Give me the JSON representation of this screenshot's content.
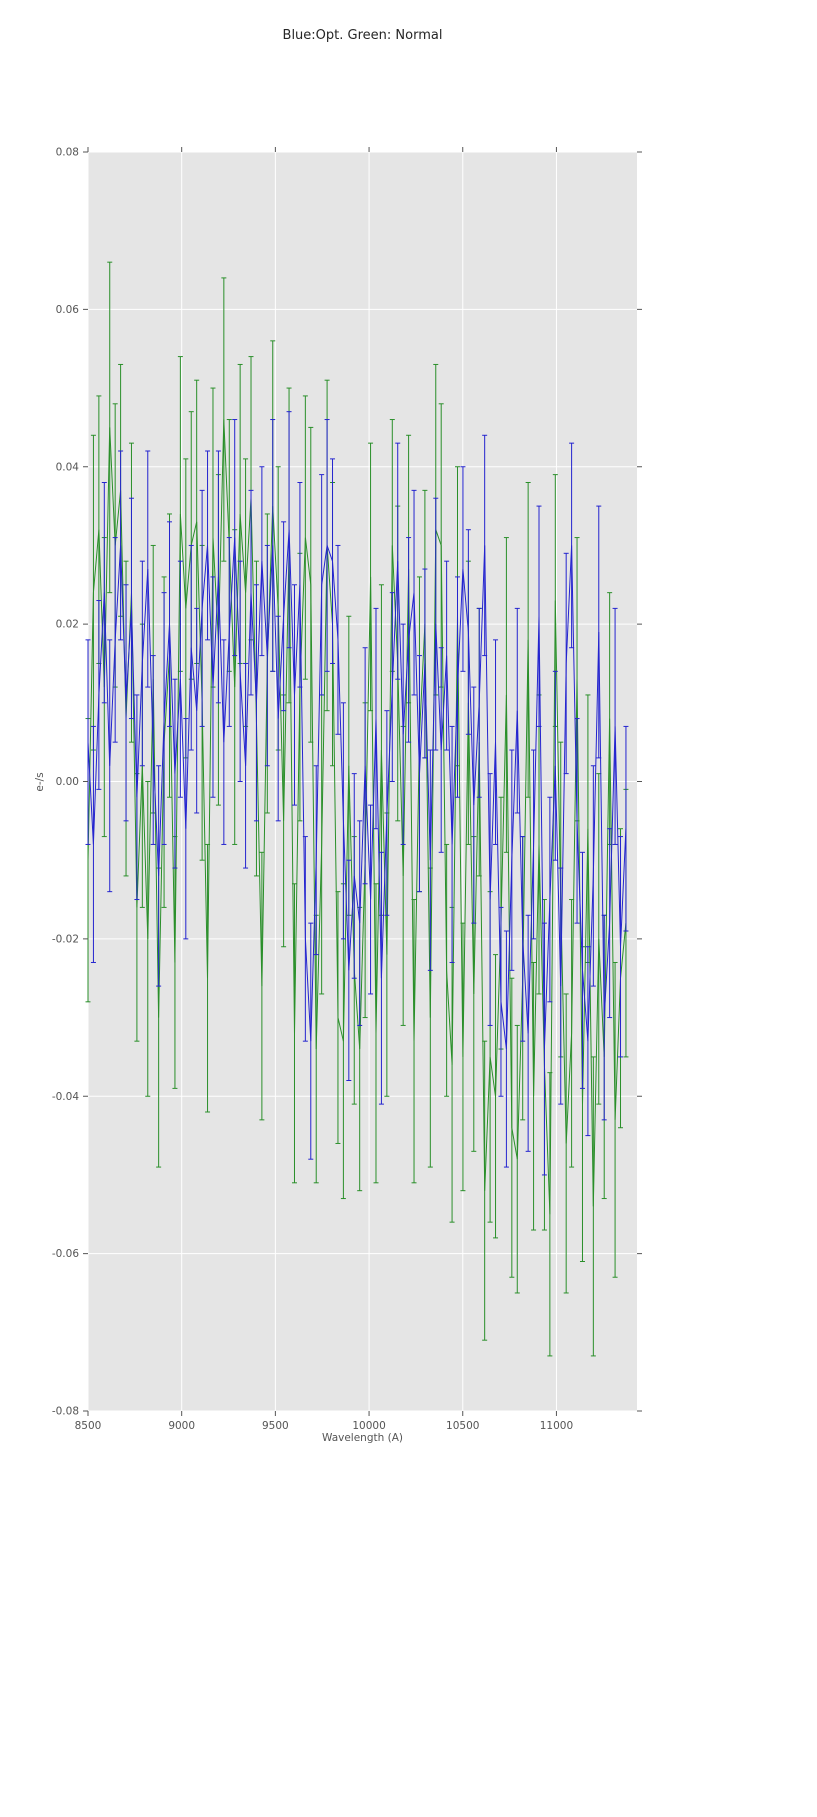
{
  "chart_data": {
    "type": "line",
    "title": "Blue:Opt. Green: Normal",
    "xlabel": "Wavelength (A)",
    "ylabel": "e-/s",
    "xlim": [
      8500,
      11430
    ],
    "ylim": [
      -0.08,
      0.08
    ],
    "xticks": [
      8500,
      9000,
      9500,
      10000,
      10500,
      11000
    ],
    "yticks": [
      -0.08,
      -0.06,
      -0.04,
      -0.02,
      0.0,
      0.02,
      0.04,
      0.06,
      0.08
    ],
    "grid": true,
    "legend": "none",
    "plot_bg_color": "#e5e5e5",
    "grid_color": "#ffffff",
    "tick_color": "#555555",
    "x": [
      8500,
      8529,
      8558,
      8587,
      8616,
      8645,
      8674,
      8703,
      8732,
      8761,
      8790,
      8819,
      8848,
      8877,
      8906,
      8935,
      8964,
      8993,
      9022,
      9051,
      9080,
      9109,
      9138,
      9167,
      9196,
      9225,
      9254,
      9283,
      9312,
      9341,
      9370,
      9399,
      9428,
      9457,
      9486,
      9515,
      9544,
      9573,
      9602,
      9631,
      9660,
      9689,
      9718,
      9747,
      9776,
      9805,
      9834,
      9863,
      9892,
      9921,
      9950,
      9979,
      10008,
      10037,
      10066,
      10095,
      10124,
      10153,
      10182,
      10211,
      10240,
      10269,
      10298,
      10327,
      10356,
      10385,
      10414,
      10443,
      10472,
      10501,
      10530,
      10559,
      10588,
      10617,
      10646,
      10675,
      10704,
      10733,
      10762,
      10791,
      10820,
      10849,
      10878,
      10907,
      10936,
      10965,
      10994,
      11023,
      11052,
      11081,
      11110,
      11139,
      11168,
      11197,
      11226,
      11255,
      11284,
      11313,
      11342,
      11371
    ],
    "series": [
      {
        "id": "normal-green",
        "name": "Normal",
        "color": "#2a8f2a",
        "y": [
          -0.01,
          0.024,
          0.032,
          0.012,
          0.045,
          0.03,
          0.037,
          0.008,
          0.024,
          -0.016,
          0.002,
          -0.02,
          0.013,
          -0.03,
          0.005,
          0.016,
          -0.023,
          0.034,
          0.022,
          0.03,
          0.033,
          0.01,
          -0.025,
          0.031,
          0.018,
          0.046,
          0.03,
          0.012,
          0.034,
          0.024,
          0.036,
          0.008,
          -0.026,
          0.015,
          0.035,
          0.022,
          -0.005,
          0.03,
          -0.032,
          0.012,
          0.031,
          0.025,
          -0.034,
          -0.008,
          0.03,
          0.02,
          -0.03,
          -0.033,
          0.002,
          -0.024,
          -0.034,
          -0.01,
          0.026,
          -0.032,
          0.004,
          -0.022,
          0.03,
          0.015,
          -0.012,
          0.027,
          -0.033,
          0.006,
          0.02,
          -0.03,
          0.032,
          0.03,
          -0.024,
          -0.036,
          0.021,
          -0.035,
          0.01,
          -0.027,
          0.005,
          -0.052,
          -0.035,
          -0.04,
          -0.018,
          0.011,
          -0.044,
          -0.048,
          -0.025,
          0.018,
          -0.04,
          -0.008,
          -0.036,
          -0.055,
          0.023,
          -0.015,
          -0.046,
          -0.032,
          0.013,
          -0.041,
          -0.006,
          -0.054,
          -0.02,
          -0.035,
          0.008,
          -0.043,
          -0.025,
          -0.018
        ],
        "yerr": [
          0.018,
          0.02,
          0.017,
          0.019,
          0.021,
          0.018,
          0.016,
          0.02,
          0.019,
          0.017,
          0.018,
          0.02,
          0.017,
          0.019,
          0.021,
          0.018,
          0.016,
          0.02,
          0.019,
          0.017,
          0.018,
          0.02,
          0.017,
          0.019,
          0.021,
          0.018,
          0.016,
          0.02,
          0.019,
          0.017,
          0.018,
          0.02,
          0.017,
          0.019,
          0.021,
          0.018,
          0.016,
          0.02,
          0.019,
          0.017,
          0.018,
          0.02,
          0.017,
          0.019,
          0.021,
          0.018,
          0.016,
          0.02,
          0.019,
          0.017,
          0.018,
          0.02,
          0.017,
          0.019,
          0.021,
          0.018,
          0.016,
          0.02,
          0.019,
          0.017,
          0.018,
          0.02,
          0.017,
          0.019,
          0.021,
          0.018,
          0.016,
          0.02,
          0.019,
          0.017,
          0.018,
          0.02,
          0.017,
          0.019,
          0.021,
          0.018,
          0.016,
          0.02,
          0.019,
          0.017,
          0.018,
          0.02,
          0.017,
          0.019,
          0.021,
          0.018,
          0.016,
          0.02,
          0.019,
          0.017,
          0.018,
          0.02,
          0.017,
          0.019,
          0.021,
          0.018,
          0.016,
          0.02,
          0.019,
          0.017
        ]
      },
      {
        "id": "opt-blue",
        "name": "Opt",
        "color": "#2424cf",
        "y": [
          0.005,
          -0.008,
          0.011,
          0.024,
          0.002,
          0.018,
          0.03,
          0.01,
          0.022,
          -0.002,
          0.015,
          0.027,
          0.004,
          -0.012,
          0.008,
          0.02,
          0.001,
          0.013,
          -0.006,
          0.017,
          0.009,
          0.022,
          0.03,
          0.012,
          0.026,
          0.005,
          0.019,
          0.031,
          0.014,
          0.002,
          0.024,
          0.01,
          0.028,
          0.016,
          0.03,
          0.008,
          0.021,
          0.032,
          0.011,
          0.025,
          -0.02,
          -0.033,
          -0.01,
          0.025,
          0.03,
          0.028,
          0.018,
          -0.005,
          -0.024,
          -0.012,
          -0.018,
          0.002,
          -0.015,
          0.008,
          -0.025,
          -0.004,
          0.012,
          0.028,
          0.006,
          0.018,
          0.024,
          0.001,
          0.015,
          -0.01,
          0.02,
          0.004,
          0.016,
          -0.008,
          0.012,
          0.027,
          0.019,
          -0.003,
          0.01,
          0.03,
          -0.015,
          0.005,
          -0.028,
          -0.034,
          -0.01,
          0.009,
          -0.02,
          -0.032,
          -0.008,
          0.021,
          -0.034,
          -0.015,
          0.002,
          -0.026,
          0.015,
          0.03,
          -0.005,
          -0.024,
          -0.033,
          -0.012,
          0.019,
          -0.03,
          -0.018,
          0.007,
          -0.021,
          -0.006
        ],
        "yerr": [
          0.013,
          0.015,
          0.012,
          0.014,
          0.016,
          0.013,
          0.012,
          0.015,
          0.014,
          0.013,
          0.013,
          0.015,
          0.012,
          0.014,
          0.016,
          0.013,
          0.012,
          0.015,
          0.014,
          0.013,
          0.013,
          0.015,
          0.012,
          0.014,
          0.016,
          0.013,
          0.012,
          0.015,
          0.014,
          0.013,
          0.013,
          0.015,
          0.012,
          0.014,
          0.016,
          0.013,
          0.012,
          0.015,
          0.014,
          0.013,
          0.013,
          0.015,
          0.012,
          0.014,
          0.016,
          0.013,
          0.012,
          0.015,
          0.014,
          0.013,
          0.013,
          0.015,
          0.012,
          0.014,
          0.016,
          0.013,
          0.012,
          0.015,
          0.014,
          0.013,
          0.013,
          0.015,
          0.012,
          0.014,
          0.016,
          0.013,
          0.012,
          0.015,
          0.014,
          0.013,
          0.013,
          0.015,
          0.012,
          0.014,
          0.016,
          0.013,
          0.012,
          0.015,
          0.014,
          0.013,
          0.013,
          0.015,
          0.012,
          0.014,
          0.016,
          0.013,
          0.012,
          0.015,
          0.014,
          0.013,
          0.013,
          0.015,
          0.012,
          0.014,
          0.016,
          0.013,
          0.012,
          0.015,
          0.014,
          0.013
        ]
      }
    ]
  }
}
